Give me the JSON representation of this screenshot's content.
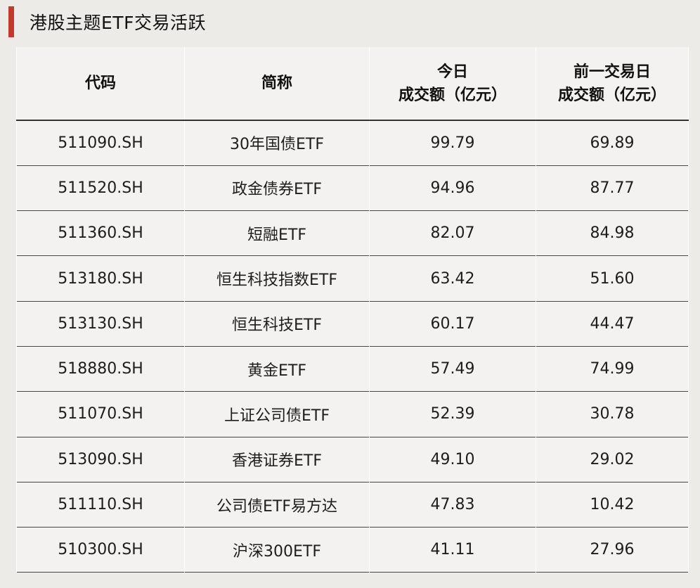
{
  "title": "港股主题ETF交易活跃",
  "colors": {
    "accent": "#c0392b",
    "background": "#edebe8"
  },
  "table": {
    "headers": {
      "code": "代码",
      "name": "简称",
      "today_line1": "今日",
      "today_line2": "成交额（亿元）",
      "prev_line1": "前一交易日",
      "prev_line2": "成交额（亿元）"
    },
    "rows": [
      {
        "code": "511090.SH",
        "name": "30年国债ETF",
        "today": "99.79",
        "prev": "69.89"
      },
      {
        "code": "511520.SH",
        "name": "政金债券ETF",
        "today": "94.96",
        "prev": "87.77"
      },
      {
        "code": "511360.SH",
        "name": "短融ETF",
        "today": "82.07",
        "prev": "84.98"
      },
      {
        "code": "513180.SH",
        "name": "恒生科技指数ETF",
        "today": "63.42",
        "prev": "51.60"
      },
      {
        "code": "513130.SH",
        "name": "恒生科技ETF",
        "today": "60.17",
        "prev": "44.47"
      },
      {
        "code": "518880.SH",
        "name": "黄金ETF",
        "today": "57.49",
        "prev": "74.99"
      },
      {
        "code": "511070.SH",
        "name": "上证公司债ETF",
        "today": "52.39",
        "prev": "30.78"
      },
      {
        "code": "513090.SH",
        "name": "香港证券ETF",
        "today": "49.10",
        "prev": "29.02"
      },
      {
        "code": "511110.SH",
        "name": "公司债ETF易方达",
        "today": "47.83",
        "prev": "10.42"
      },
      {
        "code": "510300.SH",
        "name": "沪深300ETF",
        "today": "41.11",
        "prev": "27.96"
      }
    ]
  }
}
